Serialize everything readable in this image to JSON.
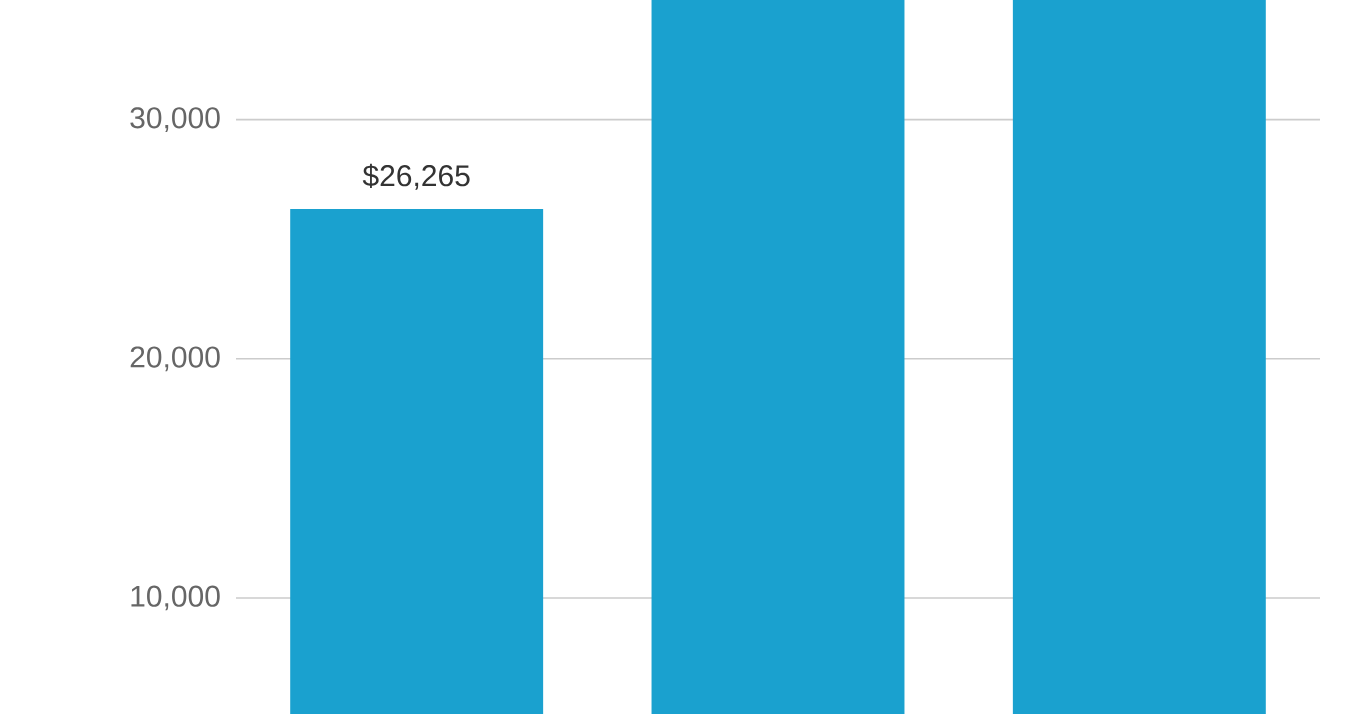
{
  "chart_data": {
    "type": "bar",
    "categories": [
      null,
      null,
      null
    ],
    "values": [
      26265,
      35000,
      35000
    ],
    "value_labels": [
      "$26,265",
      null,
      null
    ],
    "color": "#1aa1cf",
    "ylim": [
      5150,
      35000
    ],
    "yticks": [
      {
        "value": 10000,
        "label": "10,000"
      },
      {
        "value": 20000,
        "label": "20,000"
      },
      {
        "value": 30000,
        "label": "30,000"
      }
    ],
    "grid": "y",
    "tick_labels": "y"
  }
}
